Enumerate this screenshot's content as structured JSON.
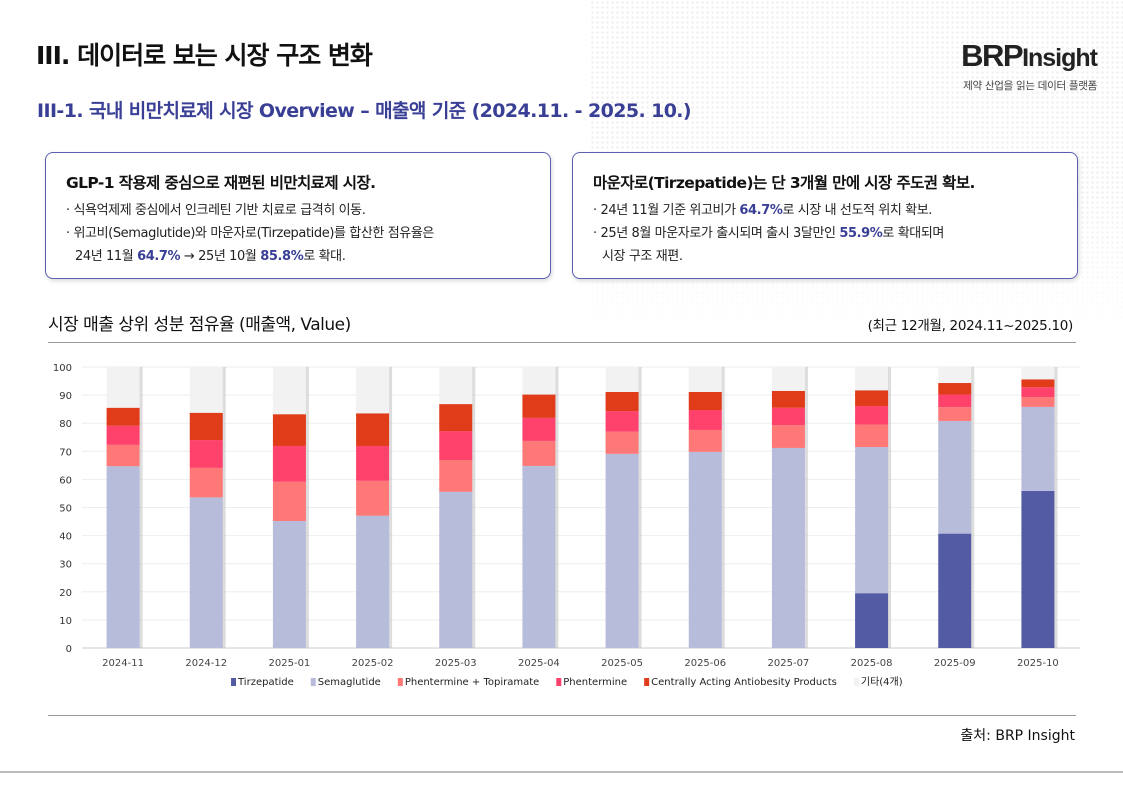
{
  "header": {
    "title": "III. 데이터로 보는 시장 구조 변화",
    "subtitle": "III-1. 국내 비만치료제 시장 Overview – 매출액 기준 (2024.11. - 2025. 10.)",
    "logo_text": "BRP Insight",
    "logo_tagline": "제약 산업을 읽는 데이터 플랫폼"
  },
  "cards": [
    {
      "heading": "GLP-1 작용제 중심으로 재편된 비만치료제 시장.",
      "line1": "· 식욕억제제 중심에서 인크레틴 기반 치료로 급격히 이동.",
      "line2": "· 위고비(Semaglutide)와 마운자로(Tirzepatide)를 합산한 점유율은",
      "line3_a": "24년 11월 ",
      "line3_b": "64.7%",
      "line3_c": " → 25년 10월 ",
      "line3_d": "85.8%",
      "line3_e": "로 확대."
    },
    {
      "heading": "마운자로(Tirzepatide)는 단 3개월 만에 시장 주도권 확보.",
      "line1_a": "· 24년 11월 기준 위고비가 ",
      "line1_b": "64.7%",
      "line1_c": "로 시장 내 선도적 위치 확보.",
      "line2_a": "· 25년 8월 마운자로가 출시되며 출시 3달만인 ",
      "line2_b": "55.9%",
      "line2_c": "로 확대되며",
      "line3": "시장 구조 재편."
    }
  ],
  "chart_header": {
    "title": "시장 매출 상위 성분 점유율 (매출액, Value)",
    "range": "(최근 12개월, 2024.11~2025.10)"
  },
  "source": "출처: BRP Insight",
  "chart_data": {
    "type": "bar",
    "stacked": true,
    "categories": [
      "2024-11",
      "2024-12",
      "2025-01",
      "2025-02",
      "2025-03",
      "2025-04",
      "2025-05",
      "2025-06",
      "2025-07",
      "2025-08",
      "2025-09",
      "2025-10"
    ],
    "ylim": [
      0,
      100
    ],
    "yticks": [
      0,
      10,
      20,
      30,
      40,
      50,
      60,
      70,
      80,
      90,
      100
    ],
    "grid": true,
    "legend_position": "bottom",
    "series": [
      {
        "name": "Tirzepatide",
        "color": "#545ba5",
        "values": [
          0,
          0,
          0,
          0,
          0,
          0,
          0,
          0,
          0,
          19.5,
          40.7,
          55.9
        ]
      },
      {
        "name": "Semaglutide",
        "color": "#b8bcdb",
        "values": [
          64.7,
          53.6,
          45.2,
          47.1,
          55.6,
          64.8,
          69.1,
          69.8,
          71.2,
          52.0,
          40.1,
          29.9
        ]
      },
      {
        "name": "Phentermine + Topiramate",
        "color": "#ff7878",
        "values": [
          7.6,
          10.5,
          14.0,
          12.4,
          11.3,
          8.9,
          7.9,
          7.8,
          8.1,
          8.0,
          4.9,
          3.5
        ]
      },
      {
        "name": "Phentermine",
        "color": "#ff426c",
        "values": [
          6.8,
          9.9,
          12.7,
          12.4,
          10.3,
          8.2,
          7.3,
          7.1,
          6.2,
          6.6,
          4.5,
          3.5
        ]
      },
      {
        "name": "Centrally Acting Antiobesity Products",
        "color": "#e03c1a",
        "values": [
          6.4,
          9.7,
          11.3,
          11.6,
          9.6,
          8.3,
          6.8,
          6.4,
          6.0,
          5.6,
          4.1,
          2.8
        ]
      },
      {
        "name": "기타(4개)",
        "color": "#f2f2f2",
        "values": [
          14.5,
          16.3,
          16.8,
          16.5,
          13.2,
          9.8,
          8.9,
          8.9,
          8.5,
          8.3,
          5.7,
          4.4
        ]
      }
    ]
  }
}
